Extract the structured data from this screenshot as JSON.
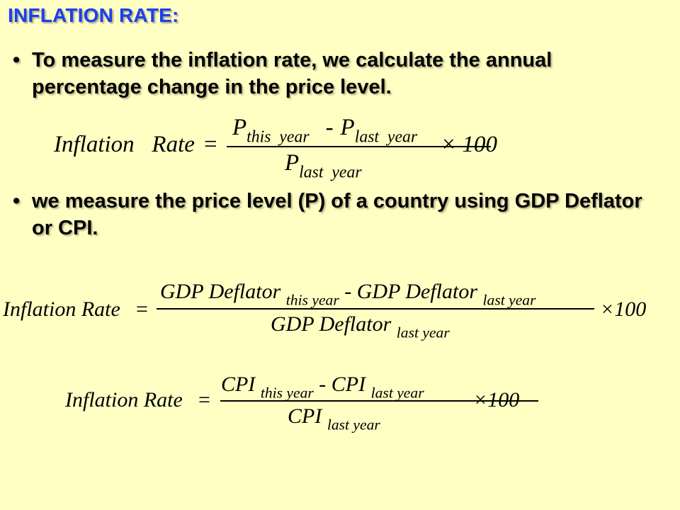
{
  "title": "INFLATION RATE:",
  "bullets": {
    "marker": "•",
    "b1": "To measure the inflation rate, we calculate the annual percentage change in the price level.",
    "b2": "we measure the price level (P) of a country using GDP Deflator or CPI."
  },
  "formula1": {
    "lhs": "Inflation   Rate",
    "eq": "=",
    "num_a": "P",
    "num_a_sub": "this  year",
    "minus": "-",
    "num_b": "P",
    "num_b_sub": "last  year",
    "den": "P",
    "den_sub": "last  year",
    "times": "× 100"
  },
  "formula2": {
    "lhs": "Inflation Rate",
    "eq": "=",
    "num_a": "GDP Deflator",
    "num_a_sub": "this year",
    "minus": "-",
    "num_b": "GDP Deflator",
    "num_b_sub": "last year",
    "den": "GDP Deflator",
    "den_sub": "last year",
    "times": "×100"
  },
  "formula3": {
    "lhs": "Inflation Rate",
    "eq": "=",
    "num_a": "CPI",
    "num_a_sub": "this year",
    "minus": "-",
    "num_b": "CPI",
    "num_b_sub": "last year",
    "den": "CPI",
    "den_sub": "last year",
    "times": "×100"
  },
  "colors": {
    "background": "#FFFFC4",
    "title": "#1A3FF0",
    "text": "#000000"
  }
}
